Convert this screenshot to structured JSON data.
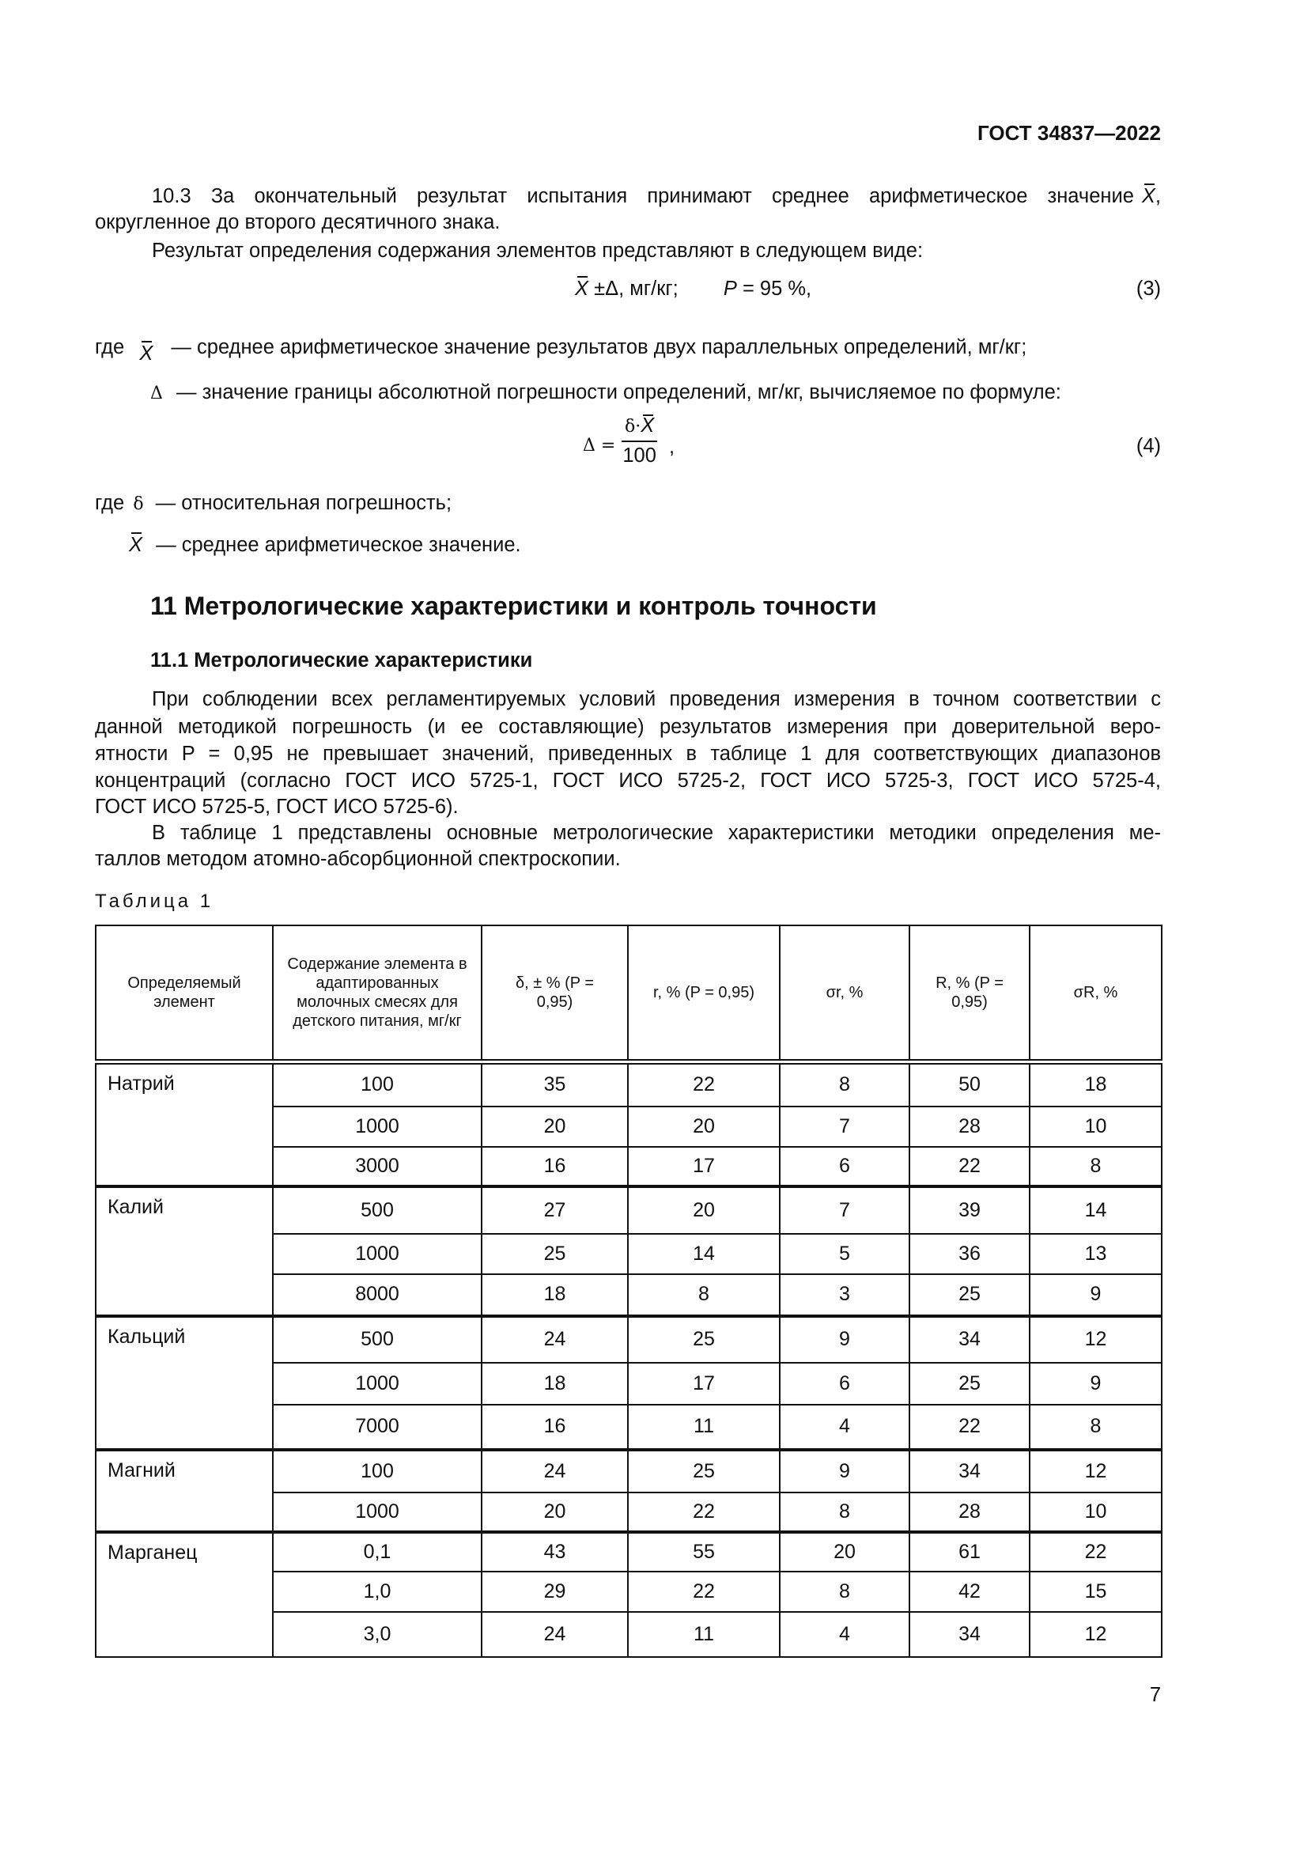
{
  "header": {
    "doc_id": "ГОСТ 34837—2022"
  },
  "section_10_3": {
    "line1": "10.3 За окончательный результат испытания принимают среднее арифметическое значение",
    "line1_var": "X",
    "line1_end": ",",
    "line2": "округленное до второго десятичного знака.",
    "line3": "Результат определения содержания элементов представляют в следующем виде:",
    "formula3": {
      "var": "X",
      "expr": " ±Δ, мг/кг;",
      "p_var": "P",
      "p_expr": " = 95 %,",
      "number": "(3)"
    },
    "where1": {
      "prefix": "где",
      "var": "X",
      "text": "— среднее арифметическое значение результатов двух параллельных определений, мг/кг;"
    },
    "where2": {
      "var": "Δ",
      "text": "— значение границы абсолютной погрешности определений, мг/кг, вычисляемое по формуле:"
    },
    "formula4": {
      "lhs": "Δ =",
      "num": "δ·",
      "num_var": "X",
      "den": "100",
      "tail": ",",
      "number": "(4)"
    },
    "where3": {
      "prefix": "где",
      "var": "δ",
      "text": "— относительная погрешность;"
    },
    "where4": {
      "var": "X",
      "text": "— среднее арифметическое значение."
    }
  },
  "section_11": {
    "title": "11  Метрологические характеристики и контроль точности",
    "sub_title": "11.1  Метрологические характеристики",
    "para1": [
      "При соблюдении всех регламентируемых условий проведения измерения в точном соответствии с",
      "данной методикой погрешность (и ее составляющие) результатов измерения при доверительной веро-",
      "ятности P = 0,95 не превышает значений, приведенных в таблице 1 для соответствующих диапазонов",
      "концентраций (согласно ГОСТ ИСО 5725-1, ГОСТ ИСО 5725-2, ГОСТ ИСО 5725-3, ГОСТ ИСО 5725-4,",
      "ГОСТ ИСО 5725-5, ГОСТ ИСО 5725-6)."
    ],
    "para2": [
      "В таблице 1 представлены основные метрологические характеристики методики определения ме-",
      "таллов методом атомно-абсорбционной спектроскопии."
    ],
    "table_caption": "Таблица  1"
  },
  "table": {
    "headers": [
      "Определяемый элемент",
      "Содержание элемента в адаптированных молочных смесях для детского питания, мг/кг",
      "δ, ± % (P = 0,95)",
      "r, % (P = 0,95)",
      "σr, %",
      "R, % (P = 0,95)",
      "σR, %"
    ],
    "groups": [
      {
        "element": "Натрий",
        "rows": [
          [
            "100",
            "35",
            "22",
            "8",
            "50",
            "18"
          ],
          [
            "1000",
            "20",
            "20",
            "7",
            "28",
            "10"
          ],
          [
            "3000",
            "16",
            "17",
            "6",
            "22",
            "8"
          ]
        ]
      },
      {
        "element": "Калий",
        "rows": [
          [
            "500",
            "27",
            "20",
            "7",
            "39",
            "14"
          ],
          [
            "1000",
            "25",
            "14",
            "5",
            "36",
            "13"
          ],
          [
            "8000",
            "18",
            "8",
            "3",
            "25",
            "9"
          ]
        ]
      },
      {
        "element": "Кальций",
        "rows": [
          [
            "500",
            "24",
            "25",
            "9",
            "34",
            "12"
          ],
          [
            "1000",
            "18",
            "17",
            "6",
            "25",
            "9"
          ],
          [
            "7000",
            "16",
            "11",
            "4",
            "22",
            "8"
          ]
        ]
      },
      {
        "element": "Магний",
        "rows": [
          [
            "100",
            "24",
            "25",
            "9",
            "34",
            "12"
          ],
          [
            "1000",
            "20",
            "22",
            "8",
            "28",
            "10"
          ]
        ]
      },
      {
        "element": "Марганец",
        "rows": [
          [
            "0,1",
            "43",
            "55",
            "20",
            "61",
            "22"
          ],
          [
            "1,0",
            "29",
            "22",
            "8",
            "42",
            "15"
          ],
          [
            "3,0",
            "24",
            "11",
            "4",
            "34",
            "12"
          ]
        ]
      }
    ]
  },
  "footer": {
    "page_number": "7"
  }
}
